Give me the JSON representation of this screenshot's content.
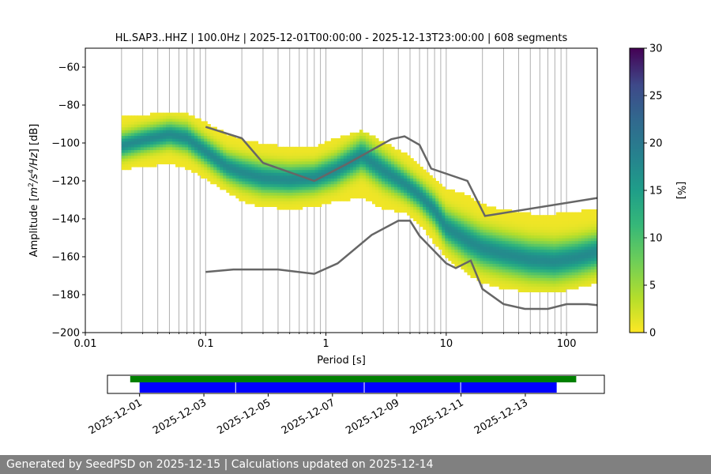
{
  "chart_data": [
    {
      "type": "heatmap",
      "title": "HL.SAP3..HHZ | 100.0Hz | 2025-12-01T00:00:00 - 2025-12-13T23:00:00 | 608 segments",
      "xlabel": "Period [s]",
      "ylabel": "Amplitude [$m^2/s^4/Hz$] [dB]",
      "xscale": "log",
      "xlim": [
        0.01,
        180
      ],
      "ylim": [
        -200,
        -50
      ],
      "xticks": [
        0.01,
        0.1,
        1,
        10,
        100
      ],
      "xtick_labels": [
        "0.01",
        "0.1",
        "1",
        "10",
        "100"
      ],
      "yticks": [
        -200,
        -180,
        -160,
        -140,
        -120,
        -100,
        -80,
        -60
      ],
      "ytick_labels": [
        "−200",
        "−180",
        "−160",
        "−140",
        "−120",
        "−100",
        "−80",
        "−60"
      ],
      "grid": "x-minor-and-major",
      "colorbar": {
        "label": "[%]",
        "min": 0,
        "max": 30,
        "ticks": [
          0,
          5,
          10,
          15,
          20,
          25,
          30
        ],
        "tick_labels": [
          "0",
          "5",
          "10",
          "15",
          "20",
          "25",
          "30"
        ],
        "colormap": "viridis_r"
      },
      "mode_curve": {
        "period": [
          0.02,
          0.03,
          0.05,
          0.07,
          0.1,
          0.15,
          0.2,
          0.3,
          0.5,
          0.8,
          1.2,
          2,
          3,
          4.5,
          6,
          8,
          10,
          15,
          20,
          30,
          50,
          80,
          120,
          180
        ],
        "db": [
          -102,
          -99,
          -96,
          -98,
          -105,
          -113,
          -116,
          -119,
          -120,
          -119,
          -115,
          -107,
          -115,
          -122,
          -128,
          -136,
          -145,
          -152,
          -156,
          -159,
          -162,
          -163,
          -161,
          -158
        ]
      },
      "density_band": {
        "period": [
          0.02,
          0.03,
          0.05,
          0.07,
          0.1,
          0.15,
          0.2,
          0.3,
          0.5,
          0.8,
          1.2,
          2,
          3,
          4.5,
          6,
          8,
          10,
          15,
          20,
          30,
          50,
          80,
          120,
          180
        ],
        "upper_db": [
          -87,
          -86,
          -84,
          -85,
          -90,
          -96,
          -99,
          -101,
          -103,
          -103,
          -98,
          -94,
          -100,
          -106,
          -113,
          -120,
          -125,
          -128,
          -133,
          -136,
          -138,
          -138,
          -137,
          -135
        ],
        "lower_db": [
          -113,
          -112,
          -110,
          -113,
          -118,
          -125,
          -130,
          -133,
          -134,
          -133,
          -130,
          -128,
          -134,
          -136,
          -142,
          -152,
          -160,
          -168,
          -173,
          -176,
          -178,
          -178,
          -176,
          -173
        ]
      },
      "noise_model_curves": [
        {
          "period": [
            0.1,
            0.2,
            0.3,
            0.8,
            1.5,
            3.5,
            4.5,
            6,
            7.5,
            15,
            21,
            180
          ],
          "db": [
            -91.5,
            -97.5,
            -110.5,
            -120,
            -111,
            -98,
            -96.5,
            -101,
            -113.5,
            -120,
            -138.5,
            -129
          ]
        },
        {
          "period": [
            0.1,
            0.17,
            0.4,
            0.8,
            1.25,
            2.4,
            4,
            5,
            6,
            10,
            12,
            16,
            20,
            30,
            45,
            70,
            100,
            150,
            180
          ],
          "db": [
            -168,
            -166.7,
            -166.7,
            -169,
            -163.5,
            -148.5,
            -141,
            -141,
            -149,
            -163.5,
            -166,
            -162,
            -177,
            -185,
            -187.5,
            -187.5,
            -185,
            -185,
            -185.5
          ]
        }
      ]
    },
    {
      "type": "timeline",
      "xlabel": "",
      "xlim": [
        "2025-11-30T00:00:00",
        "2025-12-15T11:00:00"
      ],
      "xtick_labels": [
        "2025-12-01",
        "2025-12-03",
        "2025-12-05",
        "2025-12-07",
        "2025-12-09",
        "2025-12-11",
        "2025-12-13"
      ],
      "xtick_dates": [
        "2025-12-01",
        "2025-12-03",
        "2025-12-05",
        "2025-12-07",
        "2025-12-09",
        "2025-12-11",
        "2025-12-13"
      ],
      "green_bar": {
        "start": "2025-11-30T17:00:00",
        "end": "2025-12-14T14:00:00"
      },
      "blue_segments": [
        {
          "start": "2025-12-01T00:00:00",
          "end": "2025-12-04T00:00:00"
        },
        {
          "start": "2025-12-04T00:00:00",
          "end": "2025-12-08T00:00:00"
        },
        {
          "start": "2025-12-08T00:00:00",
          "end": "2025-12-11T00:00:00"
        },
        {
          "start": "2025-12-11T00:00:00",
          "end": "2025-12-14T00:00:00"
        }
      ],
      "colors": {
        "green": "#008000",
        "blue": "#0000ff"
      }
    }
  ],
  "footer": {
    "text": "Generated by SeedPSD on 2025-12-15 | Calculations updated on 2025-12-14",
    "background": "#808080"
  },
  "colors": {
    "model_line": "#666666",
    "grid": "#b0b0b0"
  }
}
